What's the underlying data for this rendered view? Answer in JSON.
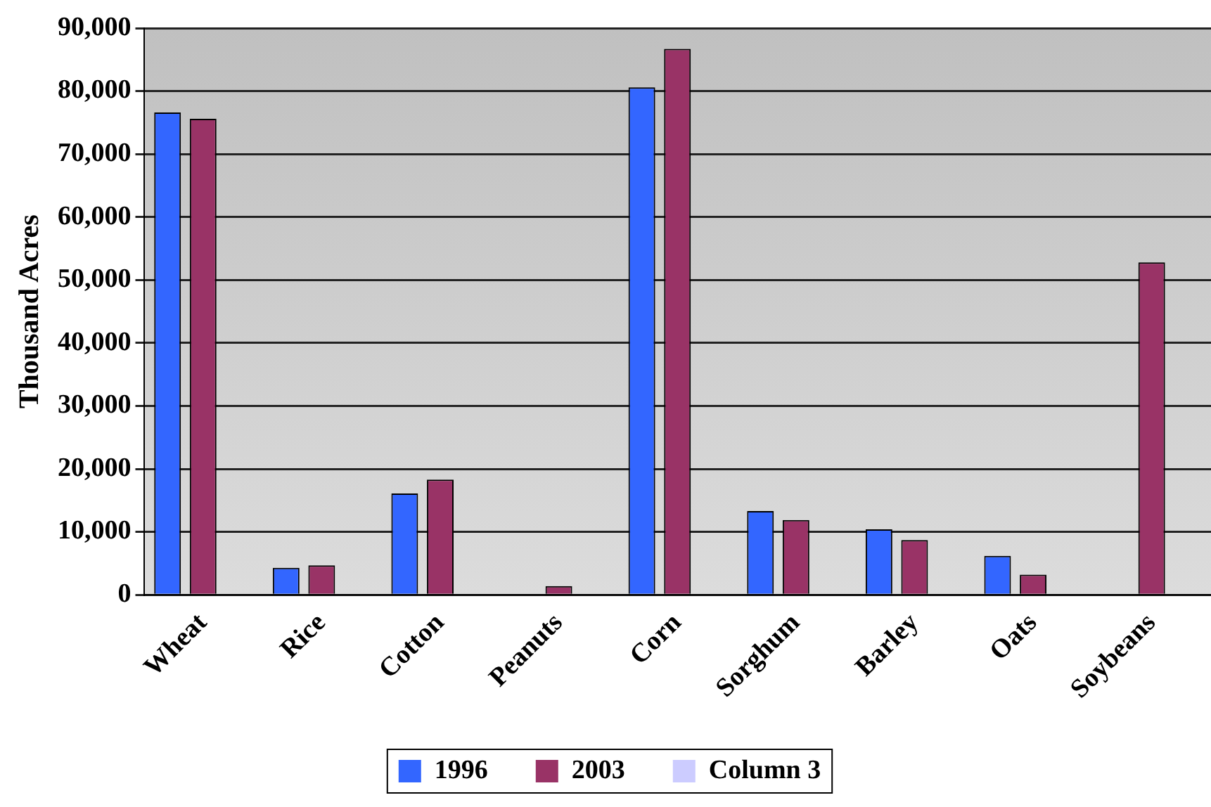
{
  "chart_data": {
    "type": "bar",
    "ylabel": "Thousand Acres",
    "categories": [
      "Wheat",
      "Rice",
      "Cotton",
      "Peanuts",
      "Corn",
      "Sorghum",
      "Barley",
      "Oats",
      "Soybeans"
    ],
    "series": [
      {
        "name": "1996",
        "color": "#3366ff",
        "values": [
          76600,
          4300,
          16100,
          null,
          80600,
          13300,
          10400,
          6200,
          null
        ]
      },
      {
        "name": "2003",
        "color": "#993366",
        "values": [
          75600,
          4700,
          18300,
          1400,
          86700,
          11900,
          8700,
          3200,
          52800
        ]
      },
      {
        "name": "Column 3",
        "color": "#ccccff",
        "values": [
          null,
          null,
          null,
          null,
          null,
          null,
          null,
          null,
          null
        ]
      }
    ],
    "ylim": [
      0,
      90000
    ],
    "yticks": [
      0,
      {
        "value": 10000,
        "label": "10,000"
      },
      {
        "value": 20000,
        "label": "20,000"
      },
      {
        "value": 30000,
        "label": "30,000"
      },
      {
        "value": 40000,
        "label": "40,000"
      },
      {
        "value": 50000,
        "label": "50,000"
      },
      {
        "value": 60000,
        "label": "60,000"
      },
      {
        "value": 70000,
        "label": "70,000"
      },
      {
        "value": 80000,
        "label": "80,000"
      },
      {
        "value": 90000,
        "label": "90,000"
      }
    ],
    "grid": "y",
    "legend": "bottom"
  }
}
